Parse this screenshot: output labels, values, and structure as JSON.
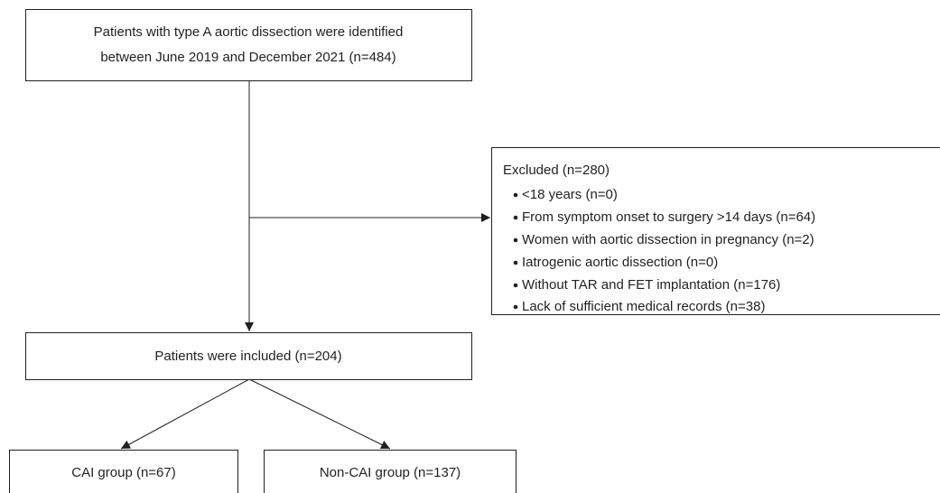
{
  "nodes": [
    {
      "lines": [
        "Patients with type A aortic dissection were identified",
        "between June 2019 and December 2021 (n=484)"
      ]
    },
    {
      "title": "Excluded (n=280)",
      "items": [
        "<18 years (n=0)",
        "From symptom onset to surgery >14 days (n=64)",
        "Women with aortic dissection in pregnancy (n=2)",
        "Iatrogenic aortic dissection (n=0)",
        "Without TAR and FET implantation (n=176)",
        "Lack of sufficient medical records (n=38)"
      ]
    },
    {
      "label": "Patients were included (n=204)"
    },
    {
      "label": "CAI group (n=67)"
    },
    {
      "label": "Non-CAI group (n=137)"
    }
  ]
}
